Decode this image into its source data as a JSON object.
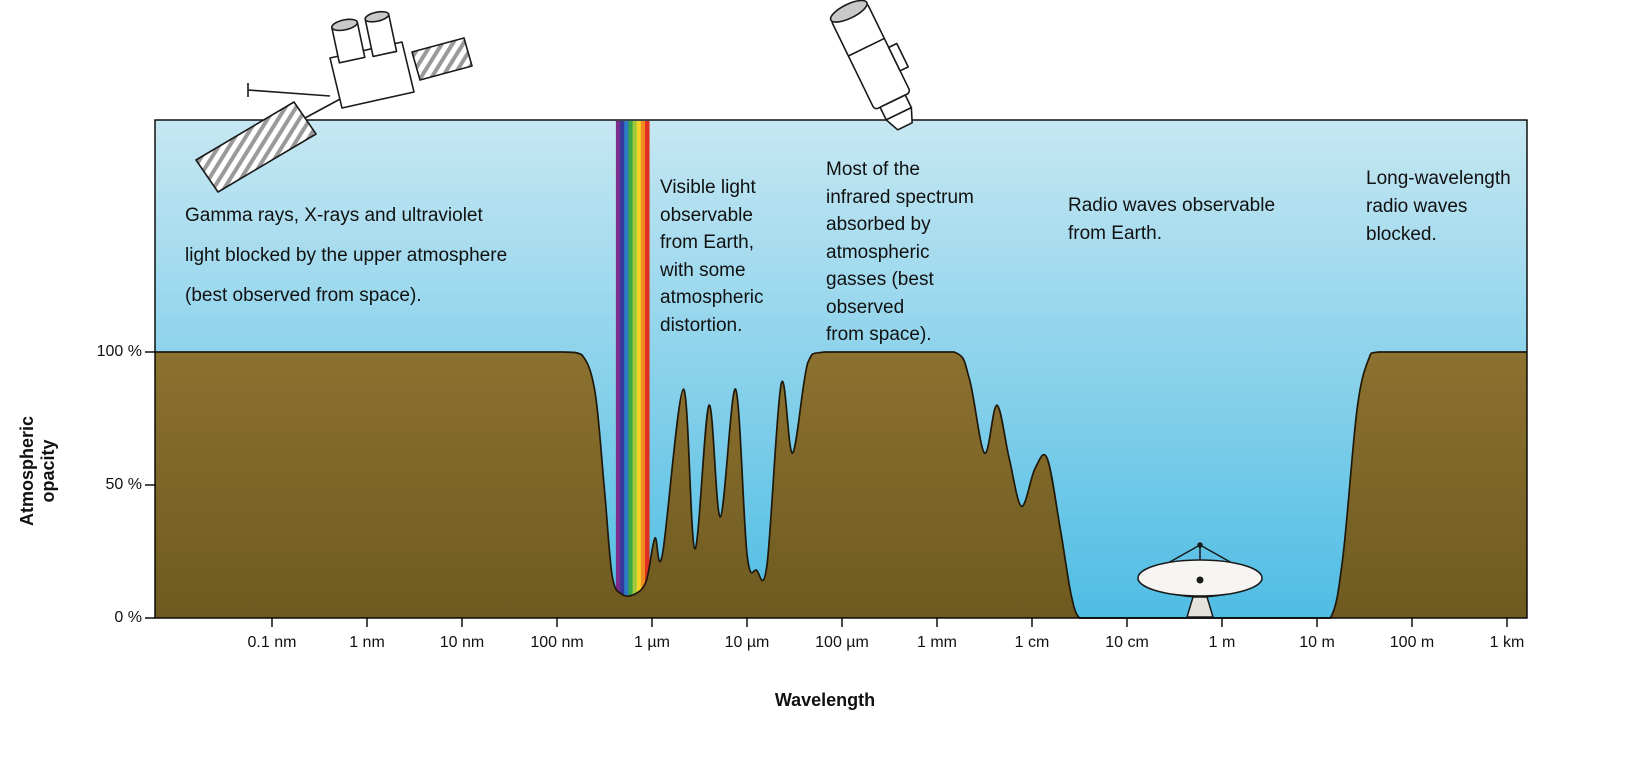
{
  "colors": {
    "sky_top": "#c6e7f2",
    "sky_bottom": "#4fbde4",
    "ground_top": "#8c7130",
    "ground_bottom": "#6e5a20",
    "curve_outline": "#20180a",
    "rainbow": [
      "#7b2d8b",
      "#35389c",
      "#2d7cc3",
      "#3aa647",
      "#9fc93c",
      "#f5d328",
      "#ef8b21",
      "#e03020"
    ]
  },
  "annotations": {
    "gamma": {
      "lines": [
        "Gamma rays, X-rays and ultraviolet",
        "light blocked by the upper atmosphere",
        "(best observed from space)."
      ]
    },
    "visible": {
      "lines": [
        "Visible light",
        "observable",
        "from Earth,",
        "with some",
        "atmospheric",
        "distortion."
      ]
    },
    "infrared": {
      "lines": [
        "Most of the",
        "infrared spectrum",
        "absorbed by",
        "atmospheric",
        "gasses (best",
        "observed",
        "from space)."
      ]
    },
    "radio": {
      "lines": [
        "Radio waves observable",
        "from Earth."
      ]
    },
    "longwave": {
      "lines": [
        "Long-wavelength",
        "radio waves",
        "blocked."
      ]
    }
  },
  "icons": [
    "xray-satellite-icon",
    "space-telescope-icon",
    "radio-telescope-icon"
  ],
  "chart_data": {
    "type": "area",
    "title": "",
    "xlabel": "Wavelength",
    "ylabel": "Atmospheric opacity",
    "ylabel_lines": [
      "Atmospheric",
      "opacity"
    ],
    "x_scale": "log",
    "x_decade_unit": "decade 0 = 0.1 nm; each +1 decade = wavelength x10",
    "xlim_decades": [
      -1.23,
      13.21
    ],
    "ylim": [
      0,
      100
    ],
    "x_ticks": [
      {
        "label": "0.1 nm",
        "decade": 0
      },
      {
        "label": "1 nm",
        "decade": 1
      },
      {
        "label": "10 nm",
        "decade": 2
      },
      {
        "label": "100 nm",
        "decade": 3
      },
      {
        "label": "1 µm",
        "decade": 4
      },
      {
        "label": "10 µm",
        "decade": 5
      },
      {
        "label": "100 µm",
        "decade": 6
      },
      {
        "label": "1 mm",
        "decade": 7
      },
      {
        "label": "1 cm",
        "decade": 8
      },
      {
        "label": "10 cm",
        "decade": 9
      },
      {
        "label": "1 m",
        "decade": 10
      },
      {
        "label": "10 m",
        "decade": 11
      },
      {
        "label": "100 m",
        "decade": 12
      },
      {
        "label": "1 km",
        "decade": 13
      }
    ],
    "y_ticks": [
      {
        "label": "100 %",
        "value": 100
      },
      {
        "label": "50 %",
        "value": 50
      },
      {
        "label": "0 %",
        "value": 0
      }
    ],
    "series": [
      {
        "name": "Atmospheric opacity (%) vs wavelength (decades from 0.1 nm)",
        "points": [
          [
            -1.23,
            100
          ],
          [
            0.8,
            100
          ],
          [
            2.4,
            100
          ],
          [
            3.05,
            100
          ],
          [
            3.26,
            99
          ],
          [
            3.4,
            85
          ],
          [
            3.5,
            48
          ],
          [
            3.58,
            16
          ],
          [
            3.68,
            9
          ],
          [
            3.82,
            9
          ],
          [
            3.94,
            14
          ],
          [
            4.03,
            30
          ],
          [
            4.11,
            24
          ],
          [
            4.33,
            86
          ],
          [
            4.45,
            26
          ],
          [
            4.6,
            80
          ],
          [
            4.72,
            38
          ],
          [
            4.88,
            86
          ],
          [
            5.0,
            24
          ],
          [
            5.1,
            18
          ],
          [
            5.21,
            20
          ],
          [
            5.36,
            88
          ],
          [
            5.48,
            62
          ],
          [
            5.64,
            96
          ],
          [
            5.82,
            100
          ],
          [
            6.6,
            100
          ],
          [
            7.18,
            100
          ],
          [
            7.34,
            90
          ],
          [
            7.5,
            62
          ],
          [
            7.63,
            80
          ],
          [
            7.76,
            60
          ],
          [
            7.89,
            42
          ],
          [
            8.03,
            56
          ],
          [
            8.16,
            60
          ],
          [
            8.3,
            33
          ],
          [
            8.41,
            9
          ],
          [
            8.5,
            0
          ],
          [
            8.66,
            0
          ],
          [
            9.6,
            0
          ],
          [
            10.9,
            0
          ],
          [
            11.14,
            0
          ],
          [
            11.27,
            22
          ],
          [
            11.42,
            78
          ],
          [
            11.54,
            97
          ],
          [
            11.65,
            100
          ],
          [
            12.5,
            100
          ],
          [
            13.21,
            100
          ]
        ]
      }
    ],
    "visible_light_band": {
      "decade_start": 3.62,
      "decade_end": 3.97,
      "bottom_opacity_percent": 8
    },
    "legend": "none",
    "grid": "off"
  }
}
